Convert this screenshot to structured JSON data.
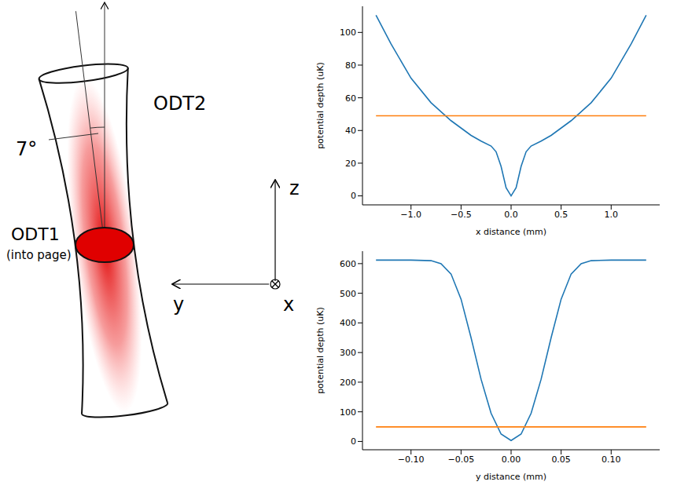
{
  "diagram": {
    "angle": {
      "value": 7,
      "label": "7°"
    },
    "beam2_label": "ODT2",
    "beam1_label": "ODT1",
    "beam1_note": "(into page)",
    "axes": {
      "z": "z",
      "y": "y",
      "x": "x"
    }
  },
  "chart_data": [
    {
      "type": "line",
      "x_label": "x distance (mm)",
      "y_label": "potential depth (uK)",
      "xlim": [
        -1.485,
        1.485
      ],
      "ylim": [
        -5.5,
        116
      ],
      "xticks": [
        {
          "value": -1,
          "label": "−1.0"
        },
        {
          "value": -0.5,
          "label": "−0.5"
        },
        {
          "value": 0,
          "label": "0.0"
        },
        {
          "value": 0.5,
          "label": "0.5"
        },
        {
          "value": 1,
          "label": "1.0"
        }
      ],
      "yticks": [
        0,
        20,
        40,
        60,
        80,
        100
      ],
      "grid": false,
      "series": [
        {
          "color": "#1f77b4",
          "x": [
            -1.35,
            -1.2,
            -1.0,
            -0.8,
            -0.6,
            -0.4,
            -0.3,
            -0.2,
            -0.15,
            -0.1,
            -0.05,
            0,
            0.05,
            0.1,
            0.15,
            0.2,
            0.3,
            0.4,
            0.6,
            0.8,
            1.0,
            1.2,
            1.35
          ],
          "values": [
            110.5,
            93,
            72,
            57,
            46,
            37,
            33.5,
            30.5,
            27,
            18,
            5,
            0,
            5,
            18,
            27,
            30.5,
            33.5,
            37,
            46,
            57,
            72,
            93,
            110.5
          ]
        },
        {
          "color": "#ff7f0e",
          "x": [
            -1.35,
            1.35
          ],
          "values": [
            49,
            49
          ]
        }
      ]
    },
    {
      "type": "line",
      "x_label": "y distance (mm)",
      "y_label": "potential depth (uK)",
      "xlim": [
        -0.1485,
        0.1485
      ],
      "ylim": [
        -28,
        642
      ],
      "xticks": [
        {
          "value": -0.1,
          "label": "−0.10"
        },
        {
          "value": -0.05,
          "label": "−0.05"
        },
        {
          "value": 0,
          "label": "0.00"
        },
        {
          "value": 0.05,
          "label": "0.05"
        },
        {
          "value": 0.1,
          "label": "0.10"
        }
      ],
      "yticks": [
        0,
        100,
        200,
        300,
        400,
        500,
        600
      ],
      "grid": false,
      "series": [
        {
          "color": "#1f77b4",
          "x": [
            -0.135,
            -0.1,
            -0.08,
            -0.07,
            -0.06,
            -0.05,
            -0.04,
            -0.03,
            -0.02,
            -0.01,
            0,
            0.01,
            0.02,
            0.03,
            0.04,
            0.05,
            0.06,
            0.07,
            0.08,
            0.1,
            0.135
          ],
          "values": [
            612,
            612,
            610,
            600,
            565,
            480,
            350,
            210,
            95,
            25,
            3,
            25,
            95,
            210,
            350,
            480,
            565,
            600,
            610,
            612,
            612
          ]
        },
        {
          "color": "#ff7f0e",
          "x": [
            -0.135,
            0.135
          ],
          "values": [
            49,
            49
          ]
        }
      ]
    }
  ]
}
